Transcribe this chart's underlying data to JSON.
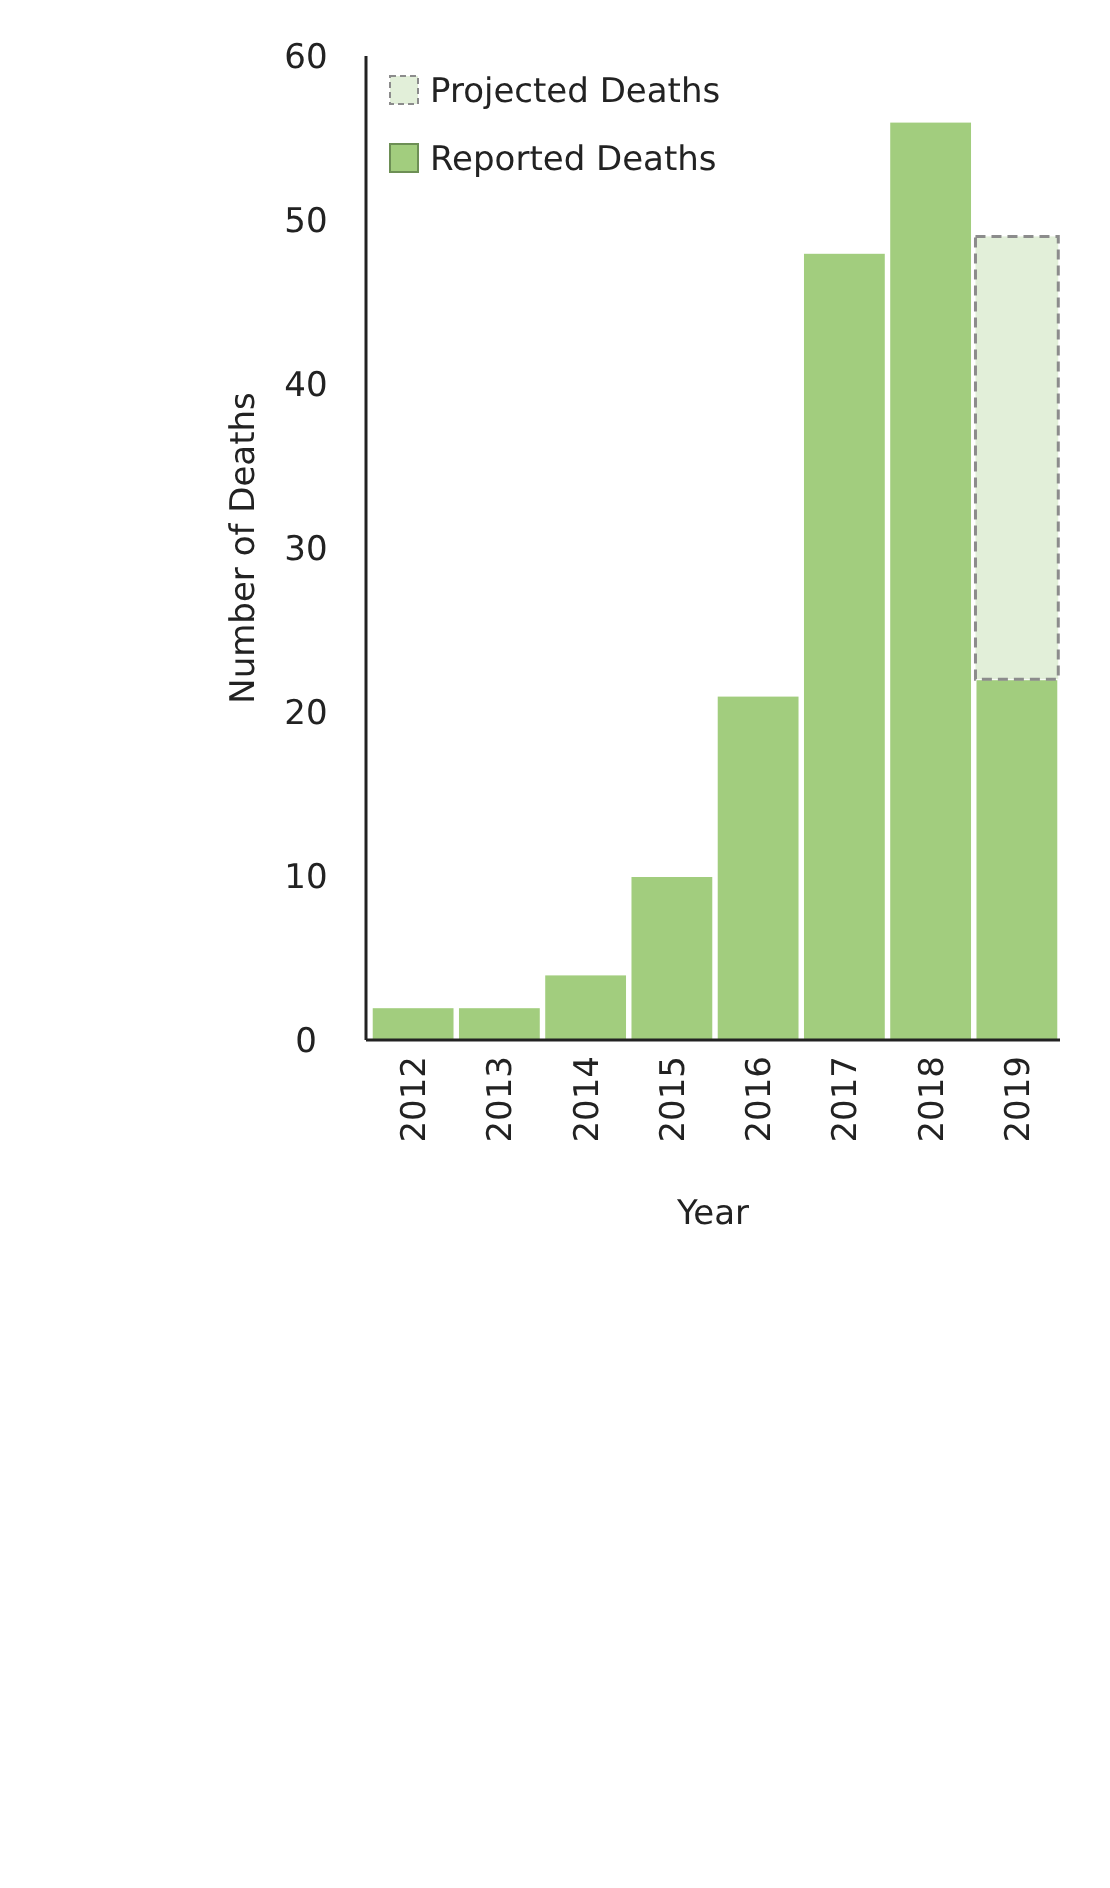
{
  "chart_data": {
    "type": "bar",
    "stacked": true,
    "xlabel": "Year",
    "ylabel": "Number of Deaths",
    "categories": [
      "2012",
      "2013",
      "2014",
      "2015",
      "2016",
      "2017",
      "2018",
      "2019"
    ],
    "series": [
      {
        "name": "Reported Deaths",
        "color": "#a2cd7e",
        "values": [
          2,
          2,
          4,
          10,
          21,
          48,
          56,
          22
        ]
      },
      {
        "name": "Projected Deaths",
        "color": "#e2efd9",
        "line_style": "dashed",
        "values": [
          null,
          null,
          null,
          null,
          null,
          null,
          null,
          27
        ]
      }
    ],
    "ylim": [
      0,
      60
    ],
    "yticks": [
      0,
      10,
      20,
      30,
      40,
      50,
      60
    ],
    "grid": false,
    "legend": "top left"
  }
}
